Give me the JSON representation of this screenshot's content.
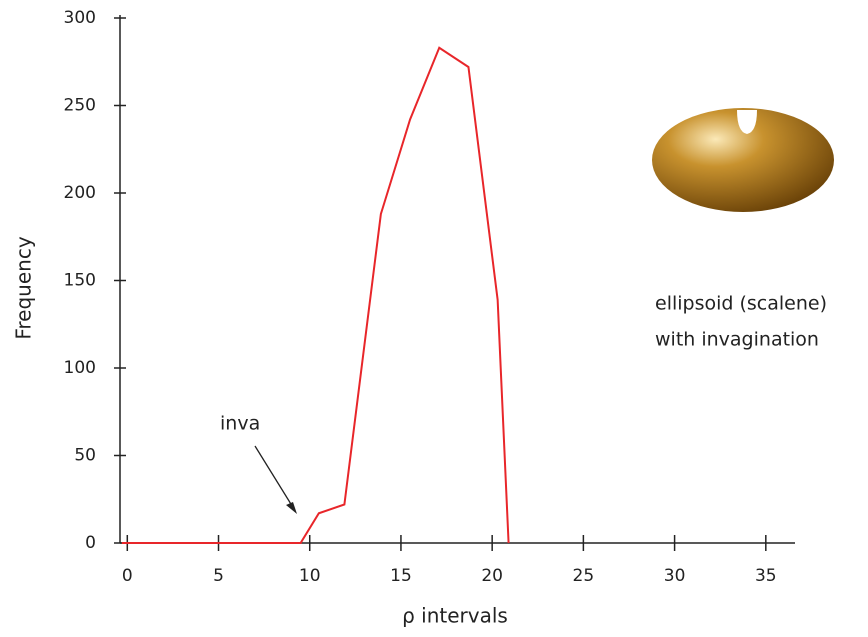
{
  "chart_data": {
    "type": "line",
    "x_label": "ρ  intervals",
    "y_label": "Frequency",
    "x": [
      -0.3,
      9.5,
      10.5,
      11.9,
      13.9,
      15.5,
      17.1,
      18.7,
      20.3,
      20.9
    ],
    "series": [
      {
        "color": "#e8262a",
        "values": [
          0,
          0,
          17,
          22,
          188,
          242,
          283,
          272,
          139,
          0
        ]
      }
    ],
    "xlim": [
      -0.4,
      36.6
    ],
    "xticks": [
      0,
      5,
      10,
      15,
      20,
      25,
      30,
      35
    ],
    "ylim": [
      0,
      300
    ],
    "yticks": [
      0,
      50,
      100,
      150,
      200,
      250,
      300
    ],
    "annotations": [
      "inva",
      "ellipsoid (scalene)",
      "with invagination"
    ]
  }
}
